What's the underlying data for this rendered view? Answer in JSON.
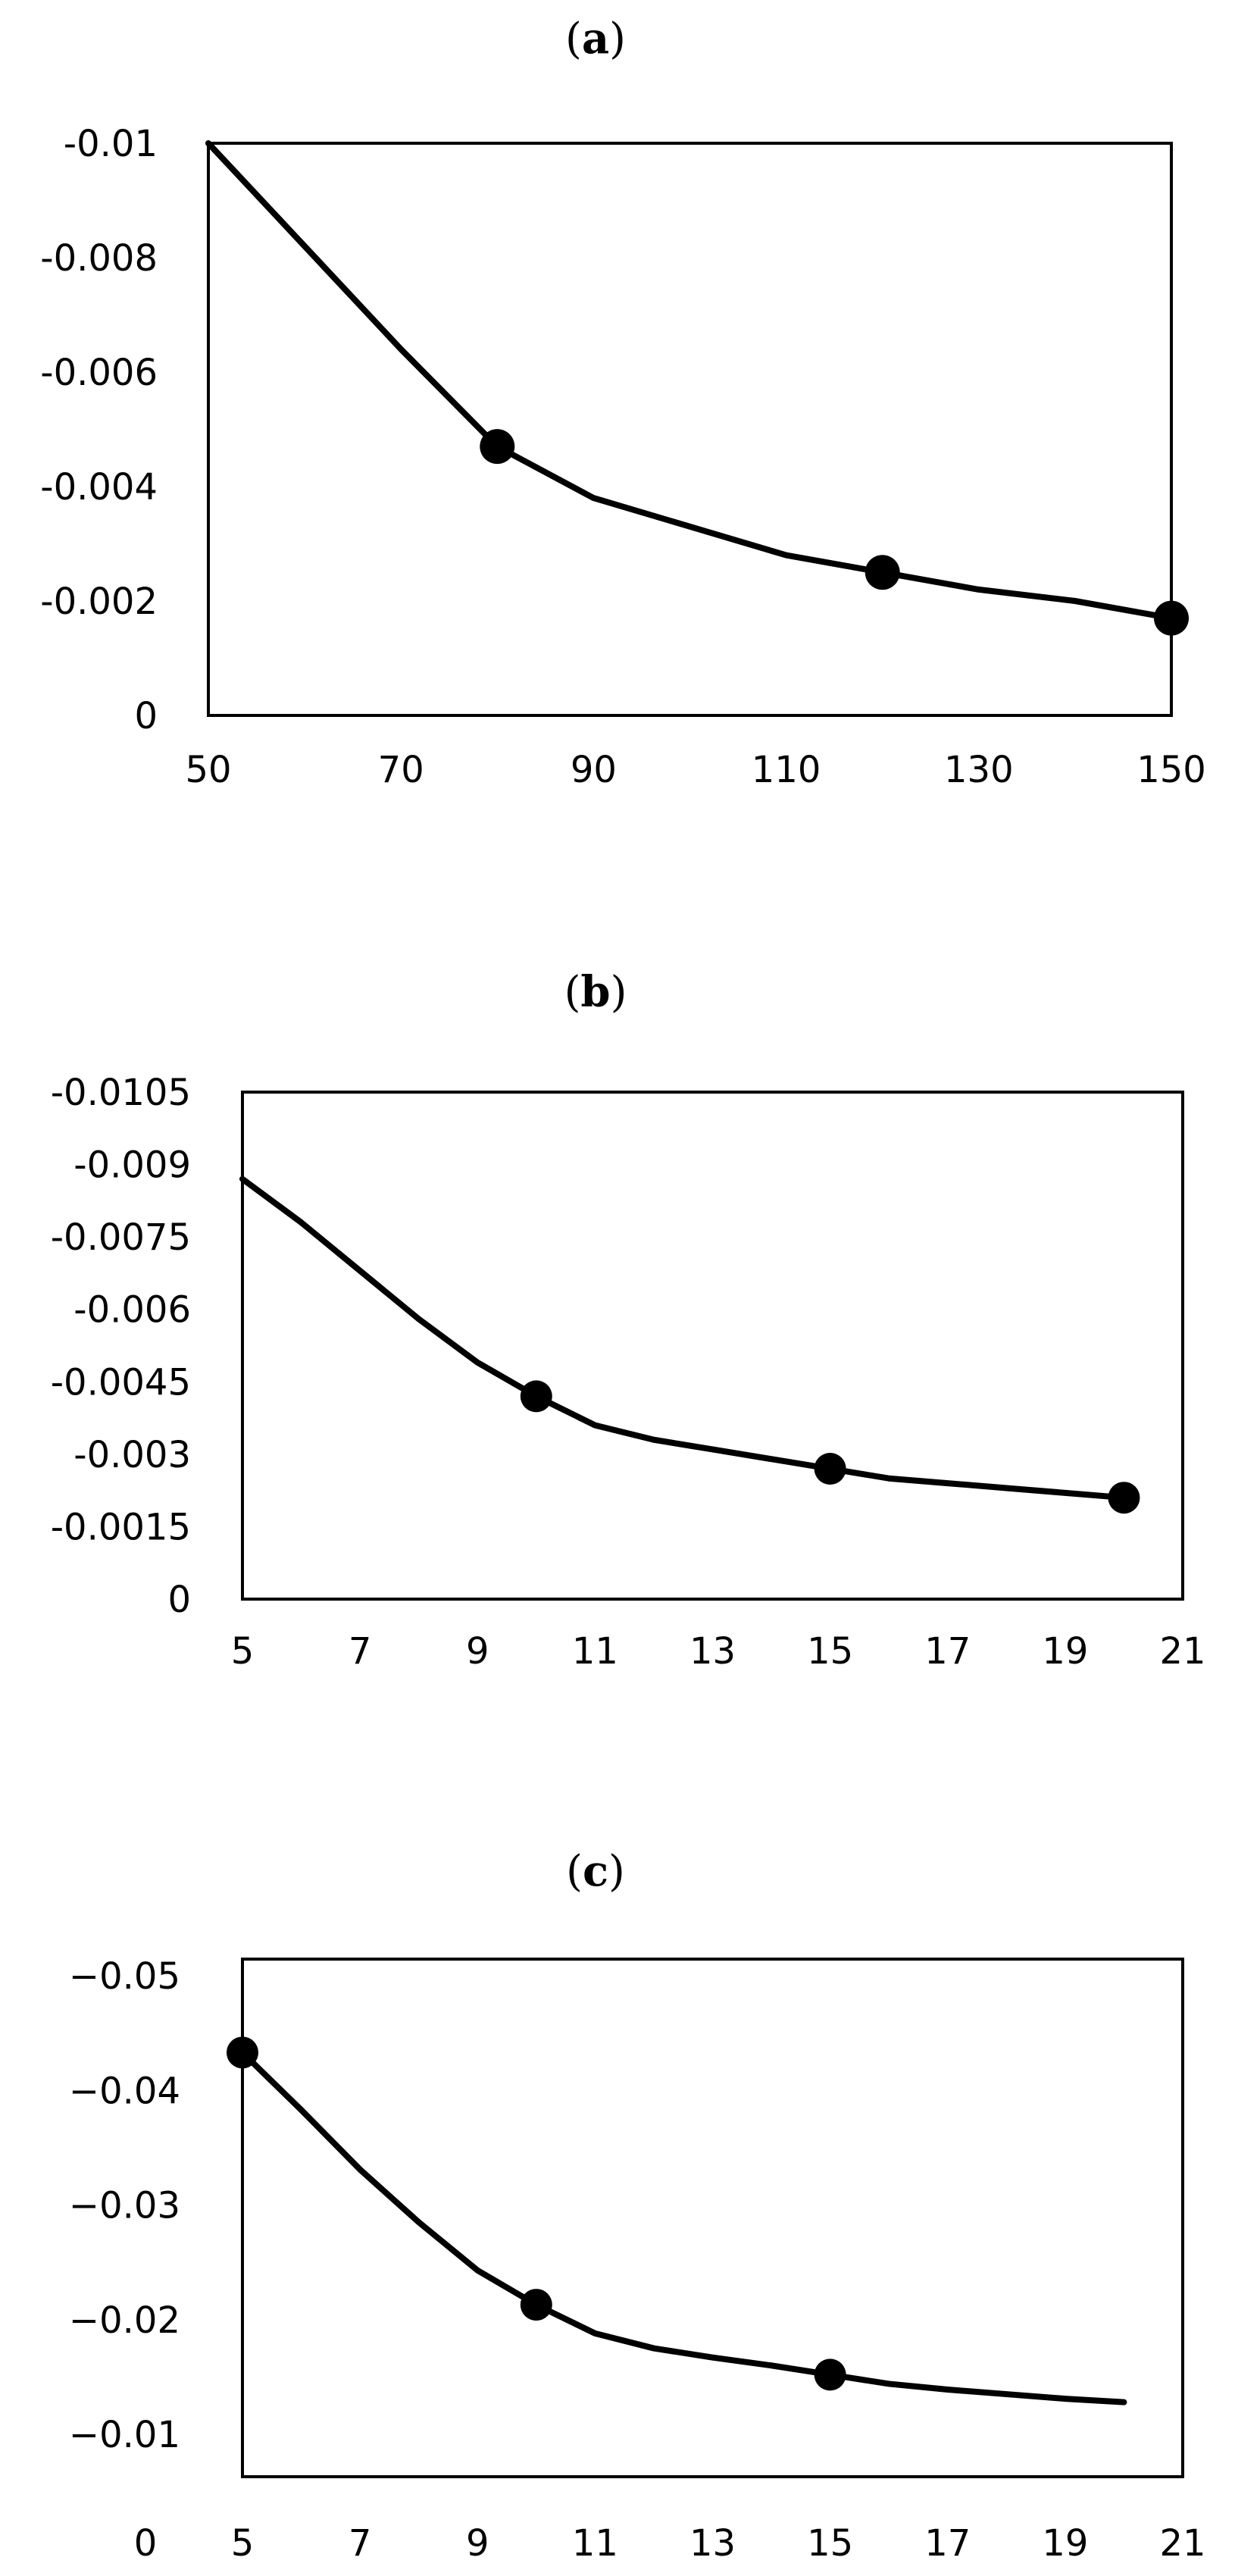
{
  "chart_data": [
    {
      "type": "line",
      "panel_label": "a",
      "title": "",
      "xlabel": "",
      "ylabel": "",
      "xlim": [
        50,
        150
      ],
      "ylim": [
        0,
        -0.01
      ],
      "x_ticks": [
        "50",
        "70",
        "90",
        "110",
        "130",
        "150"
      ],
      "y_ticks": [
        "-0.01",
        "-0.008",
        "-0.006",
        "-0.004",
        "-0.002",
        "0"
      ],
      "grid": false,
      "legend": "none",
      "series": [
        {
          "line_points": [
            [
              50,
              -0.01
            ],
            [
              60,
              -0.0082
            ],
            [
              70,
              -0.0064
            ],
            [
              80,
              -0.0047
            ],
            [
              90,
              -0.0038
            ],
            [
              100,
              -0.0033
            ],
            [
              110,
              -0.0028
            ],
            [
              120,
              -0.0025
            ],
            [
              130,
              -0.0022
            ],
            [
              140,
              -0.002
            ],
            [
              150,
              -0.0017
            ]
          ],
          "marker_points": [
            [
              80,
              -0.0047
            ],
            [
              120,
              -0.0025
            ],
            [
              150,
              -0.0017
            ]
          ]
        }
      ]
    },
    {
      "type": "line",
      "panel_label": "b",
      "title": "",
      "xlabel": "",
      "ylabel": "",
      "xlim": [
        5,
        21
      ],
      "ylim": [
        0,
        -0.0105
      ],
      "x_ticks": [
        "5",
        "7",
        "9",
        "11",
        "13",
        "15",
        "17",
        "19",
        "21"
      ],
      "y_ticks": [
        "-0.0105",
        "-0.009",
        "-0.0075",
        "-0.006",
        "-0.0045",
        "-0.003",
        "-0.0015",
        "0"
      ],
      "grid": false,
      "legend": "none",
      "series": [
        {
          "line_points": [
            [
              5,
              -0.0087
            ],
            [
              6,
              -0.0078
            ],
            [
              7,
              -0.0068
            ],
            [
              8,
              -0.0058
            ],
            [
              9,
              -0.0049
            ],
            [
              10,
              -0.0042
            ],
            [
              11,
              -0.0036
            ],
            [
              12,
              -0.0033
            ],
            [
              13,
              -0.0031
            ],
            [
              14,
              -0.0029
            ],
            [
              15,
              -0.0027
            ],
            [
              16,
              -0.0025
            ],
            [
              17,
              -0.0024
            ],
            [
              18,
              -0.0023
            ],
            [
              19,
              -0.0022
            ],
            [
              20,
              -0.0021
            ]
          ],
          "marker_points": [
            [
              10,
              -0.0042
            ],
            [
              15,
              -0.0027
            ],
            [
              20,
              -0.0021
            ]
          ]
        }
      ]
    },
    {
      "type": "line",
      "panel_label": "c",
      "title": "",
      "xlabel": "",
      "ylabel": "",
      "xlim": [
        5,
        21
      ],
      "ylim": [
        -0.005,
        -0.05
      ],
      "x_ticks": [
        "0",
        "5",
        "7",
        "9",
        "11",
        "13",
        "15",
        "17",
        "19",
        "21"
      ],
      "y_ticks": [
        "−0.05",
        "−0.04",
        "−0.03",
        "−0.02",
        "−0.01"
      ],
      "grid": false,
      "legend": "none",
      "series": [
        {
          "line_points": [
            [
              5,
              -0.0433
            ],
            [
              6,
              -0.0383
            ],
            [
              7,
              -0.0331
            ],
            [
              8,
              -0.0285
            ],
            [
              9,
              -0.0243
            ],
            [
              10,
              -0.0213
            ],
            [
              11,
              -0.0188
            ],
            [
              12,
              -0.0175
            ],
            [
              13,
              -0.0167
            ],
            [
              14,
              -0.016
            ],
            [
              15,
              -0.0152
            ],
            [
              16,
              -0.0144
            ],
            [
              17,
              -0.0139
            ],
            [
              18,
              -0.0135
            ],
            [
              19,
              -0.0131
            ],
            [
              20,
              -0.0128
            ]
          ],
          "marker_points": [
            [
              5,
              -0.0433
            ],
            [
              10,
              -0.0213
            ],
            [
              15,
              -0.0152
            ]
          ]
        }
      ]
    }
  ]
}
